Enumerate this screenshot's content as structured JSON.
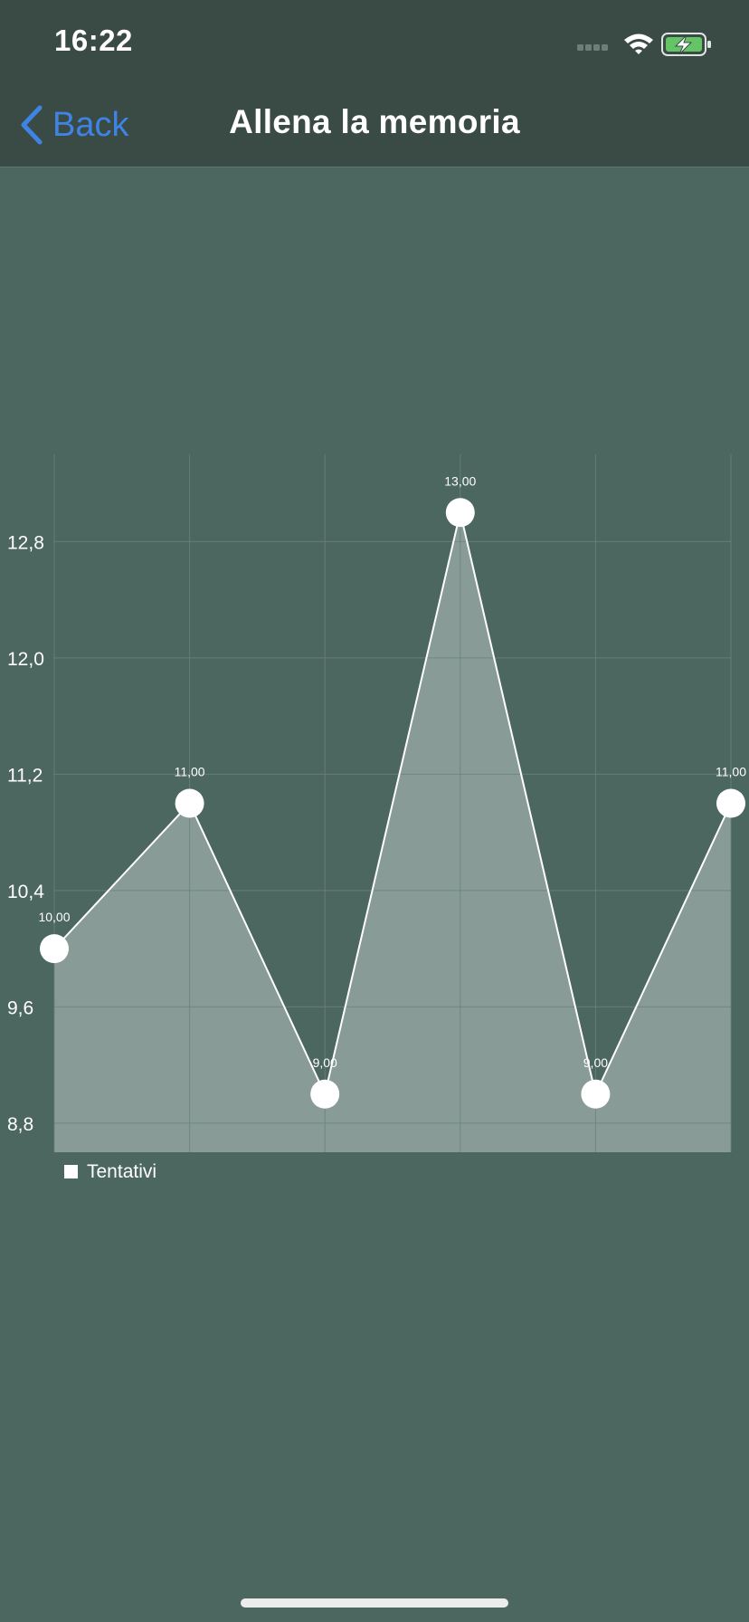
{
  "status_bar": {
    "time": "16:22",
    "icons": [
      "signal-icon",
      "wifi-icon",
      "battery-charging-icon"
    ],
    "battery_color": "#65c466"
  },
  "nav": {
    "back_label": "Back",
    "title": "Allena la memoria",
    "accent": "#3f84e5"
  },
  "chart_data": {
    "type": "area",
    "x": [
      1,
      2,
      3,
      4,
      5,
      6
    ],
    "series": [
      {
        "name": "Tentativi",
        "values": [
          10,
          11,
          9,
          13,
          9,
          11
        ],
        "value_labels": [
          "10,00",
          "11,00",
          "9,00",
          "13,00",
          "9,00",
          "11,00"
        ]
      }
    ],
    "yticks": [
      "8,8",
      "9,6",
      "10,4",
      "11,2",
      "12,0",
      "12,8"
    ],
    "ytick_values": [
      8.8,
      9.6,
      10.4,
      11.2,
      12.0,
      12.8
    ],
    "ylim": [
      8.6,
      13.4
    ],
    "grid": true,
    "legend": "bottom-left",
    "fill_color": "#889b96",
    "line_color": "#ffffff",
    "grid_color": "#6c827c"
  }
}
